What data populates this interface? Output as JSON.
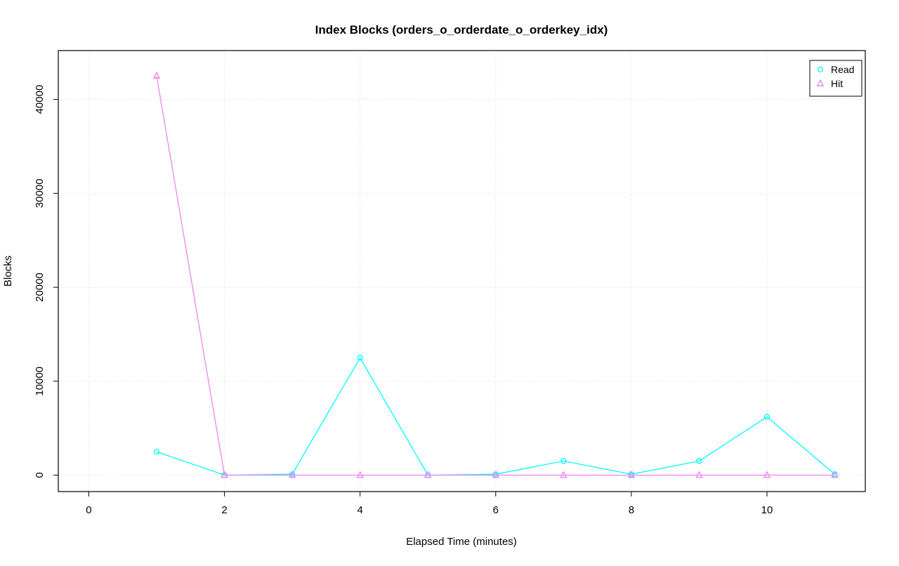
{
  "chart_data": {
    "type": "line",
    "title": "Index Blocks (orders_o_orderdate_o_orderkey_idx)",
    "xlabel": "Elapsed Time (minutes)",
    "ylabel": "Blocks",
    "x": [
      1,
      2,
      3,
      4,
      5,
      6,
      7,
      8,
      9,
      10,
      11
    ],
    "series": [
      {
        "name": "Read",
        "color": "#00FFFF",
        "marker": "circle",
        "values": [
          2500,
          0,
          100,
          12500,
          0,
          100,
          1500,
          100,
          1500,
          6200,
          100
        ]
      },
      {
        "name": "Hit",
        "color": "#EE82EE",
        "marker": "triangle",
        "values": [
          42500,
          0,
          0,
          0,
          0,
          0,
          0,
          0,
          0,
          0,
          0
        ]
      }
    ],
    "x_ticks": [
      0,
      2,
      4,
      6,
      8,
      10
    ],
    "y_ticks": [
      0,
      10000,
      20000,
      30000,
      40000
    ],
    "x_domain": [
      -0.45,
      11.45
    ],
    "y_domain": [
      -1750,
      45200
    ],
    "grid": true,
    "grid_color": "#d3d3d3",
    "axis_color": "#000000",
    "legend_position": "top-right"
  }
}
